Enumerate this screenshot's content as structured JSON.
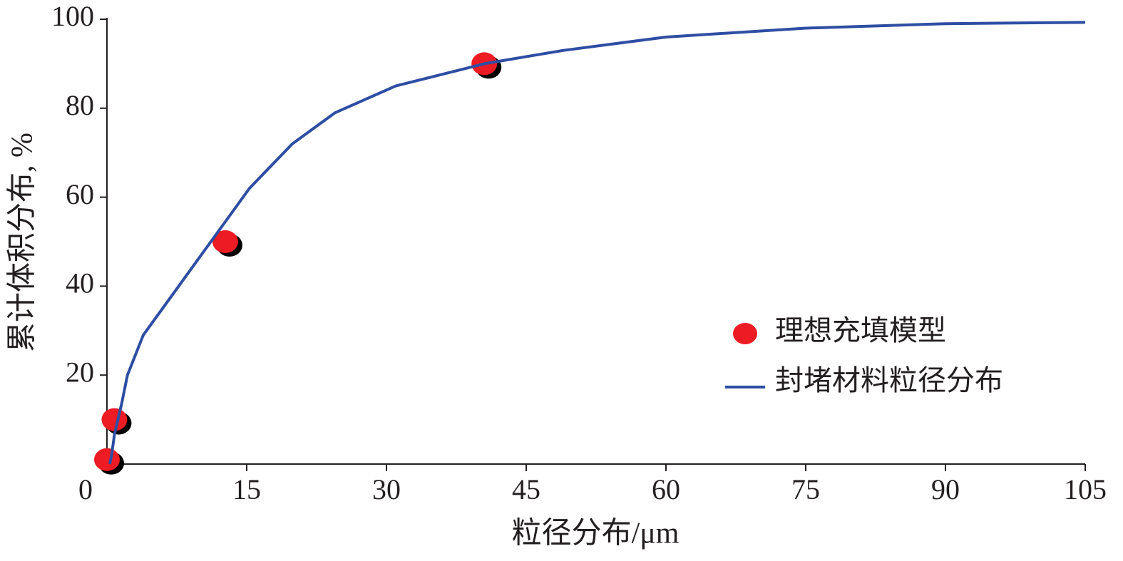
{
  "chart_data": {
    "type": "combo",
    "xlabel": "粒径分布/μm",
    "ylabel": "累计体积分布, %",
    "xlim": [
      0,
      105
    ],
    "xticks": [
      0,
      15,
      30,
      45,
      60,
      75,
      90,
      105
    ],
    "ylim": [
      0,
      100
    ],
    "yticks": [
      20,
      40,
      60,
      80,
      100
    ],
    "legend": "center right",
    "series": [
      {
        "name": "理想充填模型",
        "type": "scatter",
        "color": "#ed1c24",
        "x": [
          0,
          0.8,
          12.7,
          40.5
        ],
        "values": [
          1,
          10,
          50,
          90
        ]
      },
      {
        "name": "封堵材料粒径分布",
        "type": "line",
        "color": "#2e4ea3",
        "x": [
          0.3,
          0.5,
          0.8,
          1.6,
          2.2,
          3.9,
          7.7,
          11.5,
          15.3,
          19.9,
          24.5,
          31,
          40.5,
          49,
          60,
          75,
          90,
          105
        ],
        "values": [
          0,
          2,
          6.6,
          13.8,
          20,
          29,
          40,
          51,
          62,
          72,
          79,
          85,
          90,
          93,
          96,
          98,
          99,
          99.3
        ]
      }
    ]
  }
}
